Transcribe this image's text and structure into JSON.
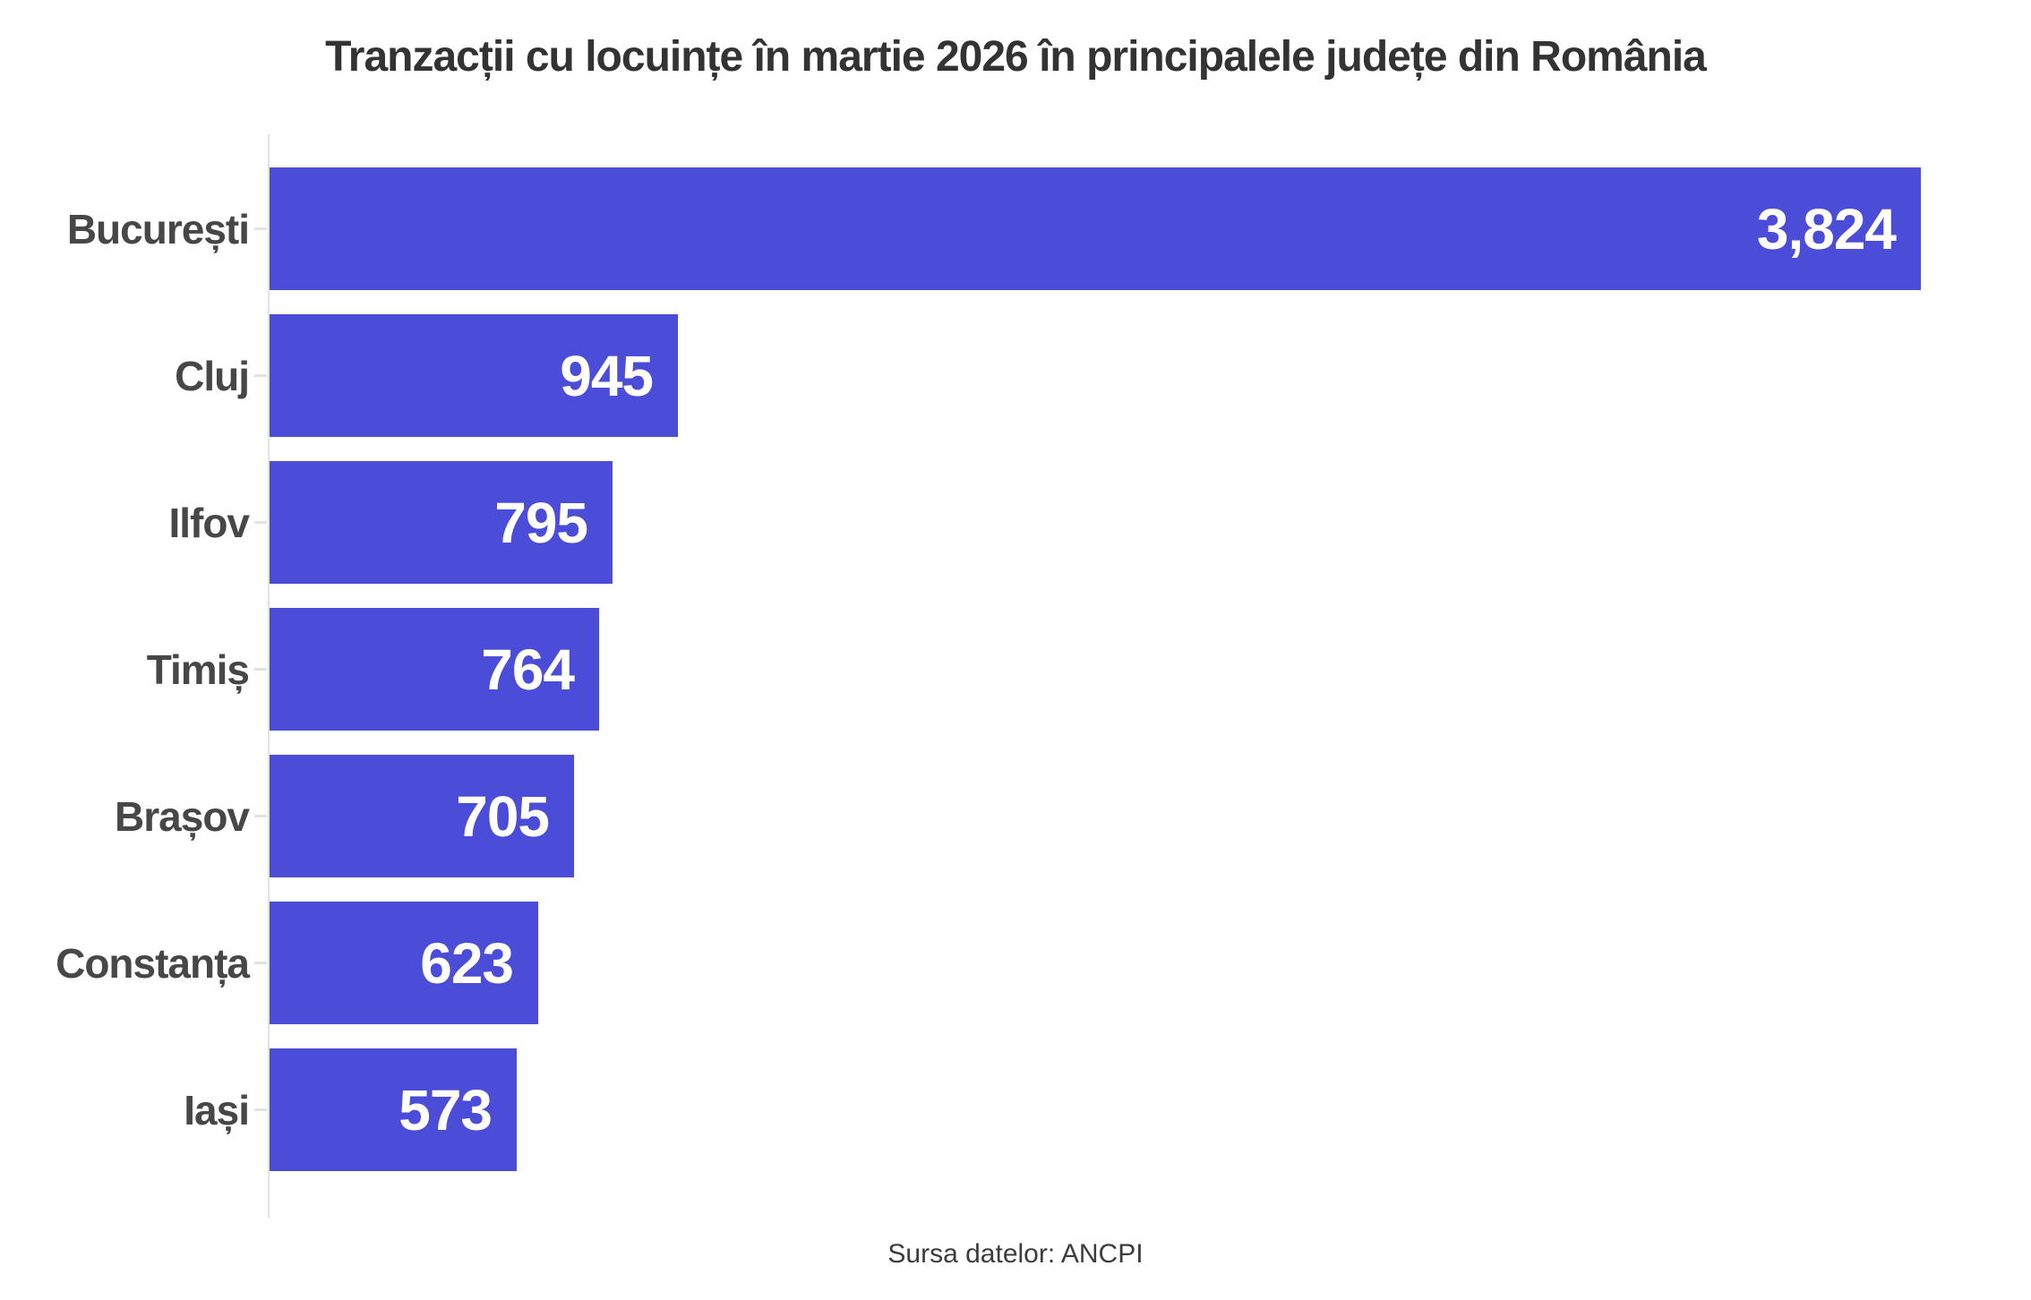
{
  "title": "Tranzacții cu locuințe în martie 2026 în principalele județe din România",
  "source": "Sursa datelor: ANCPI",
  "colors": {
    "bar": "#4b4dd9",
    "title_text": "#333333",
    "label_text": "#474747",
    "value_text": "#ffffff",
    "axis": "#e2e2e2",
    "background": "#ffffff"
  },
  "chart_data": {
    "type": "bar",
    "orientation": "horizontal",
    "title": "Tranzacții cu locuințe în martie 2026 în principalele județe din România",
    "source": "Sursa datelor: ANCPI",
    "categories": [
      "București",
      "Cluj",
      "Ilfov",
      "Timiș",
      "Brașov",
      "Constanța",
      "Iași"
    ],
    "values": [
      3824,
      945,
      795,
      764,
      705,
      623,
      573
    ],
    "value_labels": [
      "3,824",
      "945",
      "795",
      "764",
      "705",
      "623",
      "573"
    ],
    "xlabel": "",
    "ylabel": "",
    "xlim": [
      0,
      4080
    ],
    "grid": false,
    "legend": false,
    "value_label_position": "inside-right",
    "sorted": "descending"
  }
}
